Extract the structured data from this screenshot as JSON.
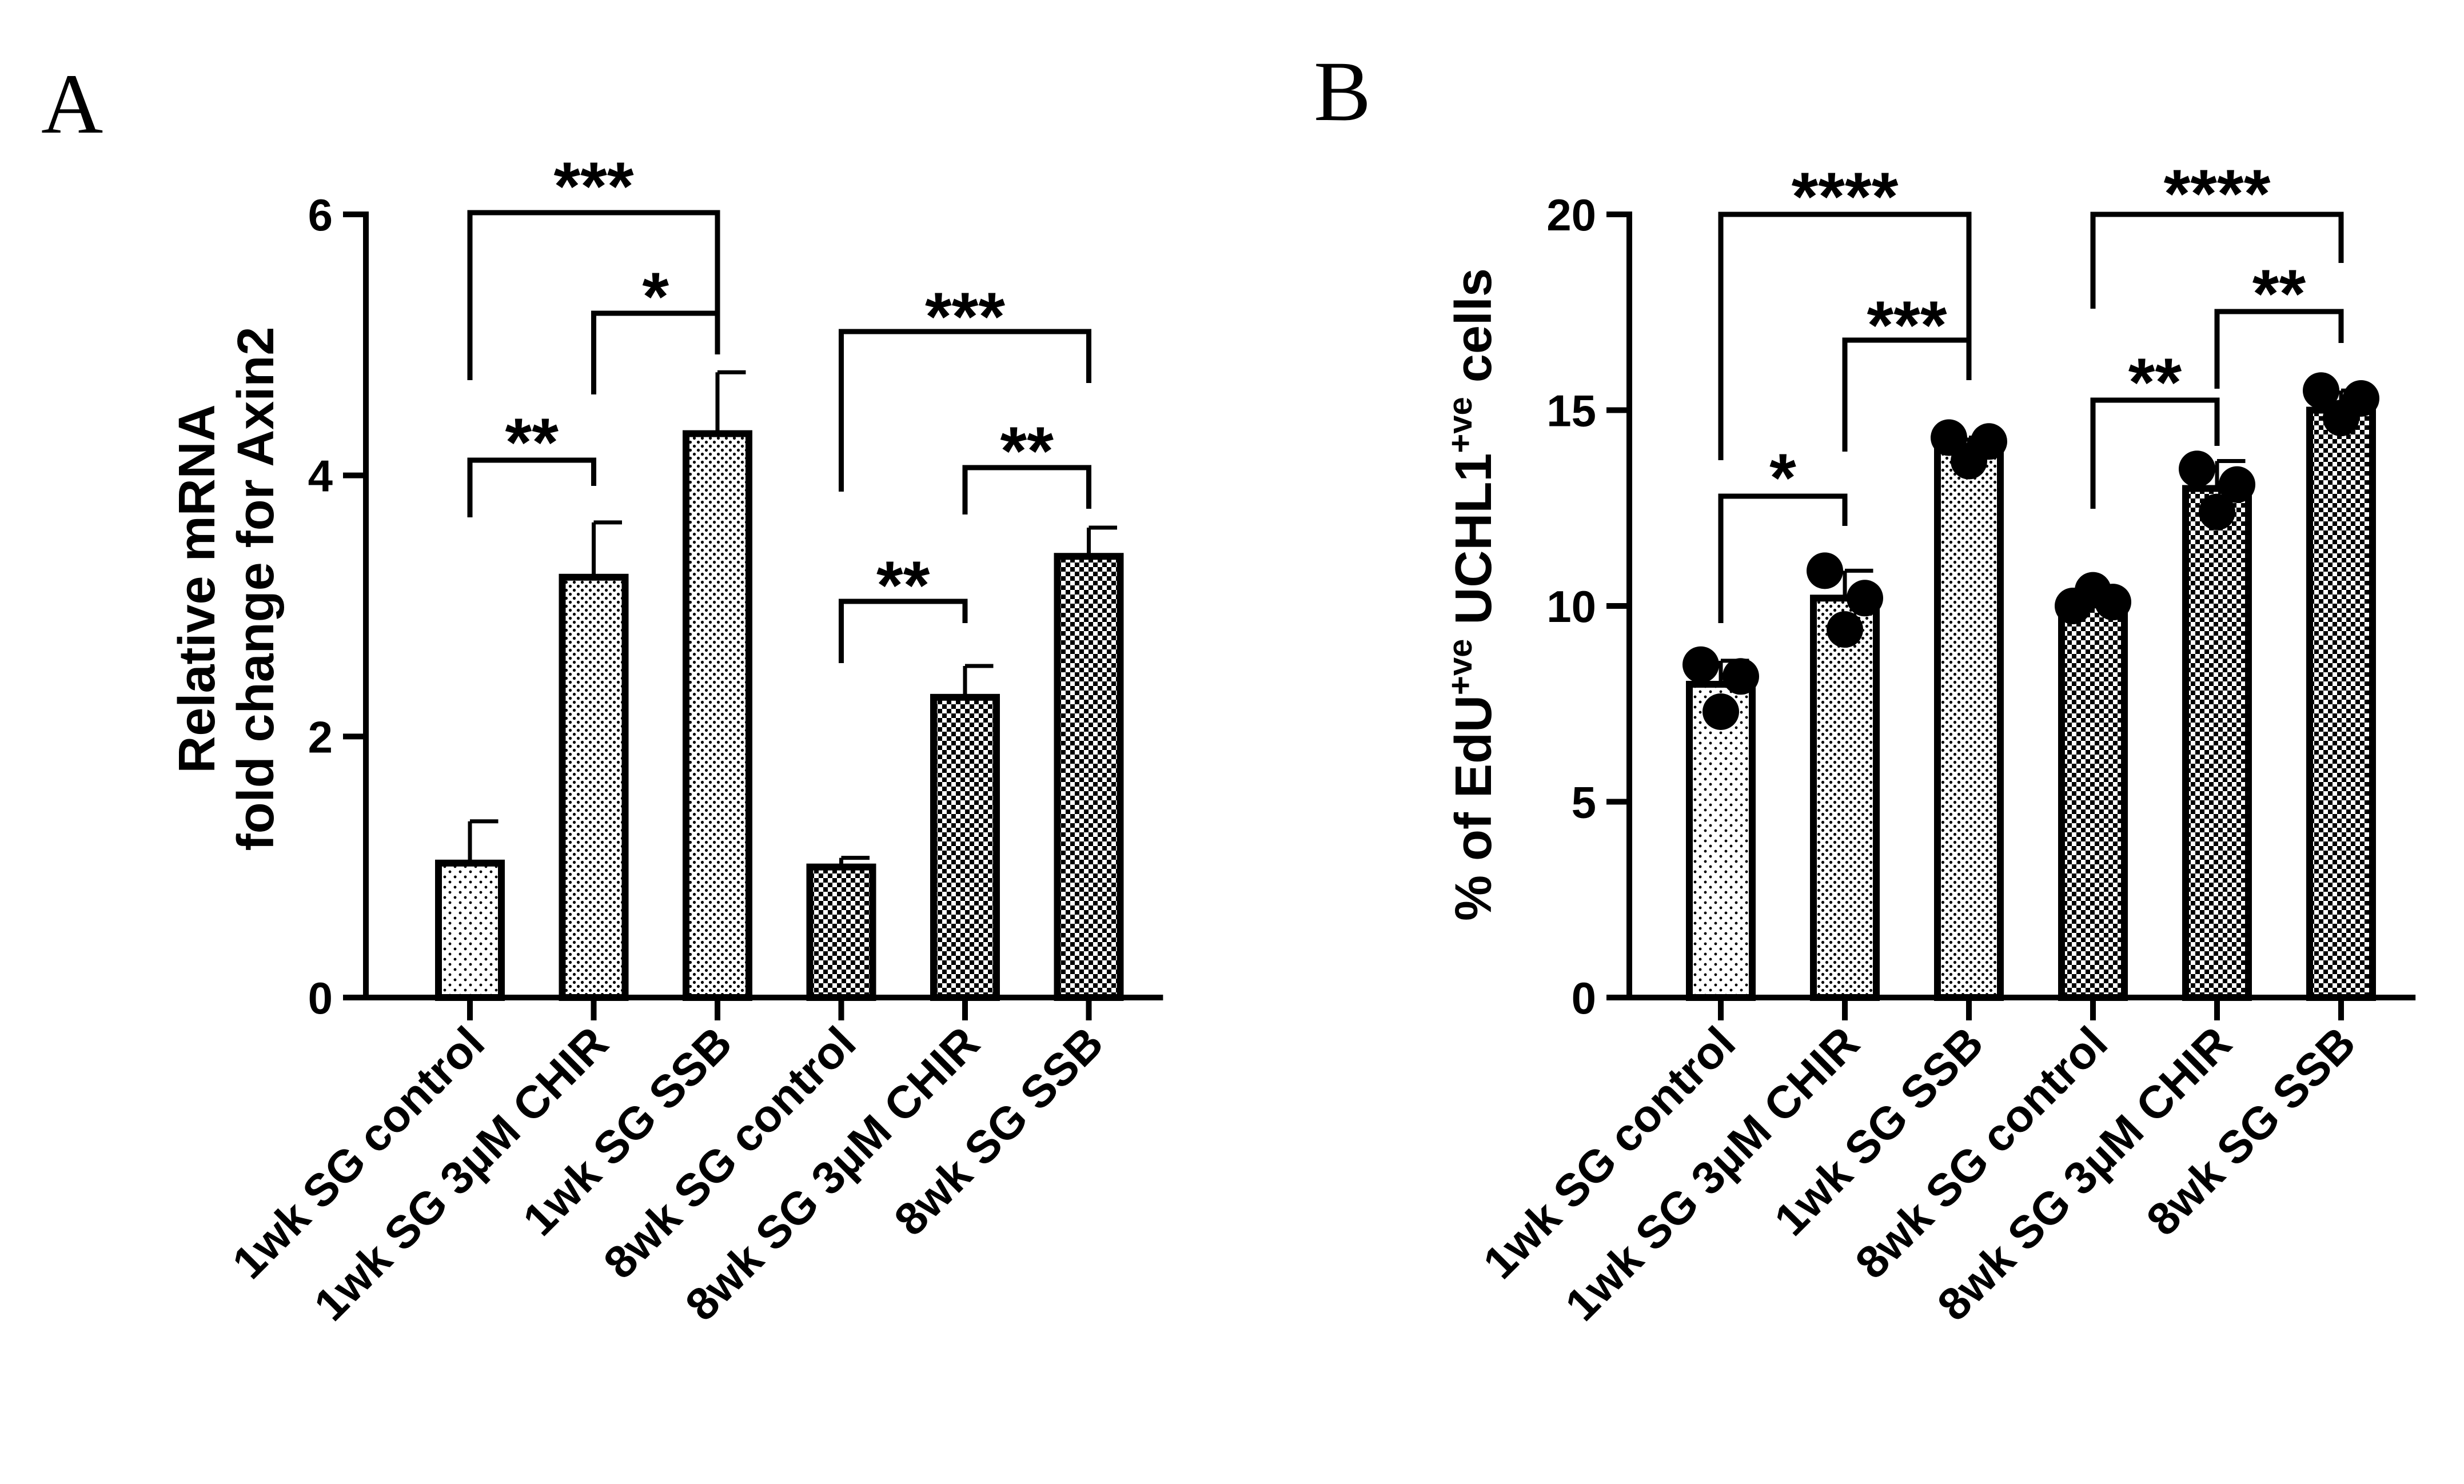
{
  "chart_data": [
    {
      "panel": "A",
      "type": "bar",
      "ylabel_line1": "Relative mRNA",
      "ylabel_line2": "fold change for Axin2",
      "ylim": [
        0,
        6
      ],
      "yticks": [
        "0",
        "2",
        "4",
        "6"
      ],
      "categories": [
        "1wk SG control",
        "1wk SG 3µM CHIR",
        "1wk SG SSB",
        "8wk SG control",
        "8wk SG 3µM CHIR",
        "8wk SG SSB"
      ],
      "values": [
        1.03,
        3.22,
        4.32,
        1.0,
        2.3,
        3.38
      ],
      "errors": [
        0.32,
        0.42,
        0.47,
        0.07,
        0.24,
        0.22
      ],
      "patterns": [
        "sparse",
        "dense",
        "dense",
        "checker",
        "checker",
        "checker"
      ],
      "points": [],
      "significance": [
        {
          "from": 0,
          "to": 1,
          "label": "**"
        },
        {
          "from": 1,
          "to": 2,
          "label": "*"
        },
        {
          "from": 0,
          "to": 2,
          "label": "***"
        },
        {
          "from": 3,
          "to": 4,
          "label": "**"
        },
        {
          "from": 4,
          "to": 5,
          "label": "**"
        },
        {
          "from": 3,
          "to": 5,
          "label": "***"
        }
      ]
    },
    {
      "panel": "B",
      "type": "bar",
      "ylabel_pre": "% of EdU",
      "ylabel_sup1": "+ve",
      "ylabel_mid": " UCHL1",
      "ylabel_sup2": "+ve",
      "ylabel_post": " cells",
      "ylim": [
        0,
        20
      ],
      "yticks": [
        "0",
        "5",
        "10",
        "15",
        "20"
      ],
      "categories": [
        "1wk SG control",
        "1wk SG 3µM CHIR",
        "1wk SG SSB",
        "8wk SG control",
        "8wk SG 3µM CHIR",
        "8wk SG SSB"
      ],
      "values": [
        8.0,
        10.2,
        14.0,
        10.1,
        13.0,
        15.0
      ],
      "errors": [
        0.6,
        0.7,
        0.3,
        0.2,
        0.7,
        0.5
      ],
      "patterns": [
        "sparse",
        "dense",
        "dense",
        "checker",
        "checker",
        "checker"
      ],
      "points": [
        [
          8.5,
          7.3,
          8.2
        ],
        [
          10.9,
          9.4,
          10.2
        ],
        [
          14.3,
          13.7,
          14.2
        ],
        [
          10.0,
          10.4,
          10.1
        ],
        [
          13.5,
          12.4,
          13.1
        ],
        [
          15.5,
          14.8,
          15.3
        ]
      ],
      "significance": [
        {
          "from": 0,
          "to": 1,
          "label": "*"
        },
        {
          "from": 1,
          "to": 2,
          "label": "***"
        },
        {
          "from": 0,
          "to": 2,
          "label": "****"
        },
        {
          "from": 3,
          "to": 4,
          "label": "**"
        },
        {
          "from": 4,
          "to": 5,
          "label": "**"
        },
        {
          "from": 3,
          "to": 5,
          "label": "****"
        }
      ]
    }
  ]
}
